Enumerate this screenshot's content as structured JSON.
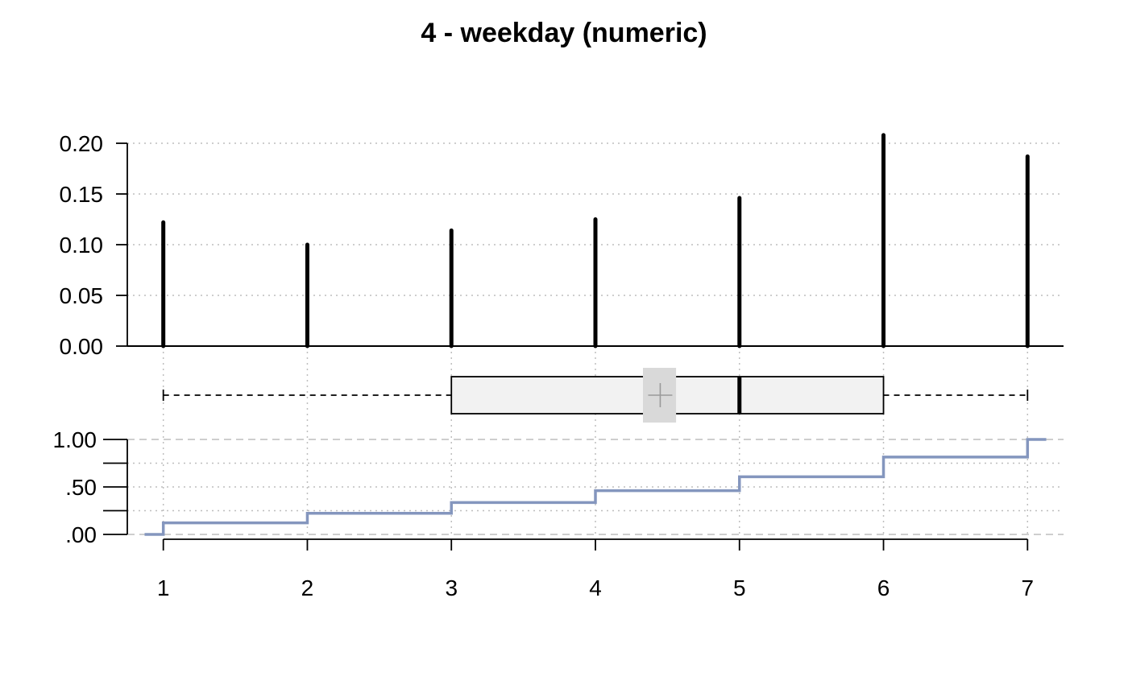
{
  "chart_data": {
    "type": "bar",
    "title": "4 - weekday (numeric)",
    "x": [
      1,
      2,
      3,
      4,
      5,
      6,
      7
    ],
    "x_tick_labels": [
      "1",
      "2",
      "3",
      "4",
      "5",
      "6",
      "7"
    ],
    "xlim": [
      0.75,
      7.25
    ],
    "bar_panel": {
      "values": [
        0.122,
        0.1,
        0.114,
        0.125,
        0.146,
        0.208,
        0.187
      ],
      "ylim": [
        0,
        0.2
      ],
      "y_ticks": [
        0,
        0.05,
        0.1,
        0.15,
        0.2
      ],
      "y_tick_labels": [
        "0.00",
        "0.05",
        "0.10",
        "0.15",
        "0.20"
      ],
      "grid": true
    },
    "boxplot": {
      "min": 1,
      "q1": 3,
      "median": 5,
      "q3": 6,
      "max": 7,
      "mean": 4.45,
      "mean_ci": [
        4.33,
        4.56
      ]
    },
    "ecdf_panel": {
      "cumulative": [
        0.122,
        0.222,
        0.336,
        0.461,
        0.607,
        0.815,
        1.0
      ],
      "ylim": [
        0,
        1
      ],
      "y_ticks": [
        0,
        0.5,
        1
      ],
      "y_tick_labels": [
        ".00",
        ".50",
        "1.00"
      ],
      "minor_ticks": [
        0.25,
        0.75
      ]
    },
    "colors": {
      "bars": "#000000",
      "ecdf_line": "#8496BE",
      "box_fill": "#F2F2F2",
      "mean_ci_fill": "#D9D9D9",
      "grid": "#BEBEBE"
    }
  }
}
